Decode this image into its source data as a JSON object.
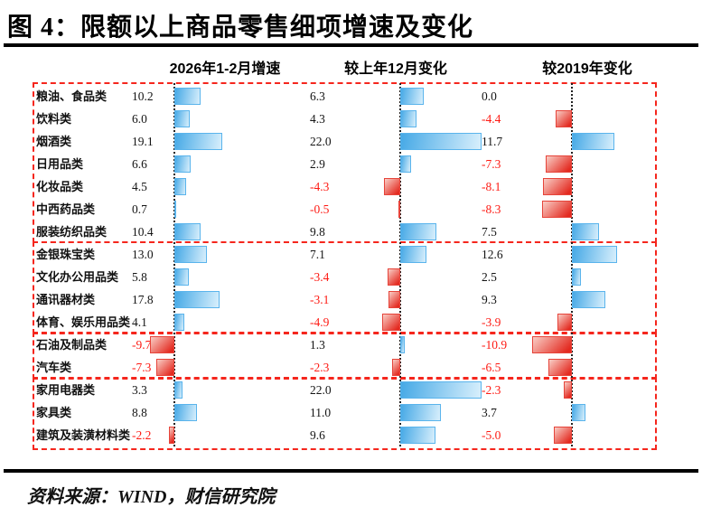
{
  "title": "图 4：限额以上商品零售细项增速及变化",
  "source": "资料来源：WIND，财信研究院",
  "columns": [
    "2026年1-2月增速",
    "较上年12月变化",
    "较2019年变化"
  ],
  "colors": {
    "blue_dark": "#46A9E6",
    "blue_light": "#D8EFFC",
    "blue_border": "#5AB4EC",
    "red_dark": "#E3291F",
    "red_light": "#F9CEC6",
    "red_border": "#E6443A",
    "negative_text": "#FE1B14",
    "positive_text": "#141414",
    "group_box_border": "#F5261D",
    "zero_line": "#222222"
  },
  "chart_data": {
    "type": "bar",
    "orientation": "horizontal",
    "title": "图 4：限额以上商品零售细项增速及变化",
    "categories": [
      "粮油、食品类",
      "饮料类",
      "烟酒类",
      "日用品类",
      "化妆品类",
      "中西药品类",
      "服装纺织品类",
      "金银珠宝类",
      "文化办公用品类",
      "通讯器材类",
      "体育、娱乐用品类",
      "石油及制品类",
      "汽车类",
      "家用电器类",
      "家具类",
      "建筑及装潢材料类"
    ],
    "series": [
      {
        "name": "2026年1-2月增速",
        "values": [
          10.2,
          6.0,
          19.1,
          6.6,
          4.5,
          0.7,
          10.4,
          13.0,
          5.8,
          17.8,
          4.1,
          -9.7,
          -7.3,
          3.3,
          8.8,
          -2.2
        ],
        "xlim": [
          -10,
          20
        ]
      },
      {
        "name": "较上年12月变化",
        "values": [
          6.3,
          4.3,
          22.0,
          2.9,
          -4.3,
          -0.5,
          9.8,
          7.1,
          -3.4,
          -3.1,
          -4.9,
          1.3,
          -2.3,
          22.0,
          11.0,
          9.6
        ],
        "xlim": [
          -5,
          22
        ]
      },
      {
        "name": "较2019年变化",
        "values": [
          0.0,
          -4.4,
          11.7,
          -7.3,
          -8.1,
          -8.3,
          7.5,
          12.6,
          2.5,
          9.3,
          -3.9,
          -10.9,
          -6.5,
          -2.3,
          3.7,
          -5.0
        ],
        "xlim": [
          -11,
          13
        ]
      }
    ],
    "row_groups": [
      7,
      4,
      2,
      3
    ],
    "value_label_style": "negative values shown in red, positive in black",
    "grid": false,
    "legend": false
  }
}
